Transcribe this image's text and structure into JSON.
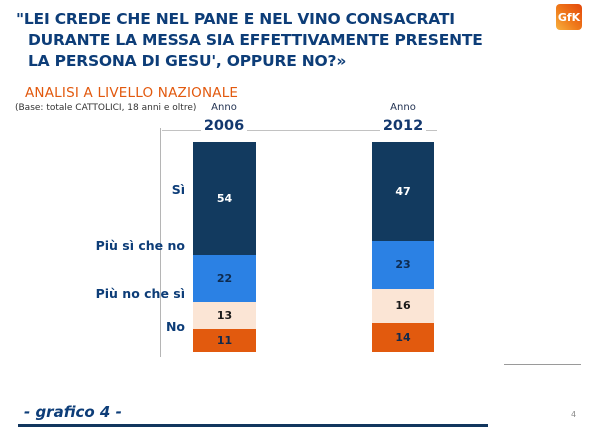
{
  "slide": {
    "title_lines": [
      "\"LEI CREDE CHE NEL PANE E NEL VINO CONSACRATI",
      "DURANTE LA MESSA SIA EFFETTIVAMENTE PRESENTE",
      "LA PERSONA DI GESU', OPPURE NO?»"
    ],
    "subtitle": "ANALISI A LIVELLO NAZIONALE",
    "base_note": "(Base: totale CATTOLICI, 18 anni e oltre)",
    "footer_label": "- grafico 4 -",
    "page_number": "4",
    "logo_text": "GfK"
  },
  "colors": {
    "title_navy": "#0d3d78",
    "subtitle_orange": "#e2590e",
    "axis_gray": "#b5b5b5",
    "logo_orange": "#ef7a1a"
  },
  "chart_data": {
    "type": "bar",
    "stacked": true,
    "orientation": "vertical",
    "unit": "%",
    "ylim": [
      0,
      100
    ],
    "grid": "single top line at 100",
    "legend_position": "category labels on left axis",
    "categories": [
      "Sì",
      "Più sì che no",
      "Più no che sì",
      "No"
    ],
    "columns": [
      {
        "header_top": "Anno",
        "header_year": "2006",
        "values": [
          54,
          22,
          13,
          11
        ]
      },
      {
        "header_top": "Anno",
        "header_year": "2012",
        "values": [
          47,
          23,
          16,
          14
        ]
      }
    ],
    "segment_colors": [
      "#123a5f",
      "#2b81e4",
      "#fbe5d5",
      "#e25a0e"
    ],
    "value_label_colors": [
      "#ffffff",
      "#0e2b4f",
      "#1a1a1a",
      "#102a4e"
    ]
  }
}
